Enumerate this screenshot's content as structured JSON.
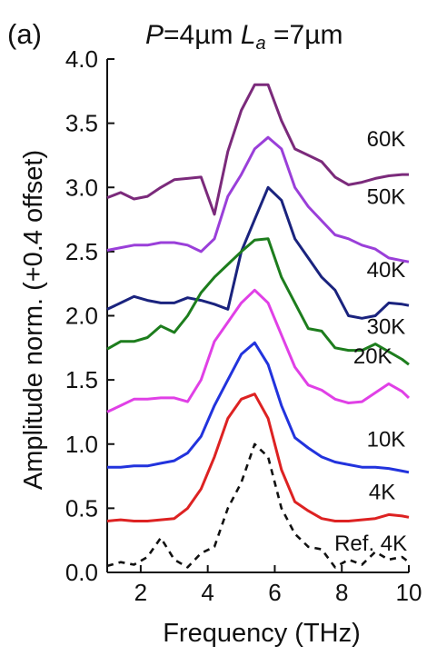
{
  "panel_label": "(a)",
  "chart_data": {
    "type": "line",
    "title_parts": {
      "p_sym": "P",
      "p_val": "=4µm ",
      "la_sym": "L",
      "la_sub": "a",
      "la_val": " =7µm"
    },
    "xlabel": "Frequency (THz)",
    "ylabel": "Amplitude  norm. (+0.4 offset)",
    "xlim": [
      1.0,
      10.0
    ],
    "ylim": [
      0.0,
      4.0
    ],
    "xticks": [
      2,
      4,
      6,
      8,
      10
    ],
    "xtick_labels": [
      "2",
      "4",
      "6",
      "8",
      "10"
    ],
    "yticks": [
      0.0,
      0.5,
      1.0,
      1.5,
      2.0,
      2.5,
      3.0,
      3.5,
      4.0
    ],
    "ytick_labels": [
      "0.0",
      "0.5",
      "1.0",
      "1.5",
      "2.0",
      "2.5",
      "3.0",
      "3.5",
      "4.0"
    ],
    "grid": false,
    "x": [
      1.0,
      1.4,
      1.8,
      2.2,
      2.6,
      3.0,
      3.4,
      3.8,
      4.2,
      4.6,
      5.0,
      5.4,
      5.8,
      6.2,
      6.6,
      7.0,
      7.4,
      7.8,
      8.2,
      8.6,
      9.0,
      9.4,
      9.8,
      10.0
    ],
    "series": [
      {
        "name": "60K",
        "color": "#7b2a7b",
        "dash": false,
        "values": [
          2.92,
          2.96,
          2.91,
          2.93,
          3.0,
          3.06,
          3.07,
          3.08,
          2.79,
          3.28,
          3.6,
          3.8,
          3.8,
          3.52,
          3.3,
          3.25,
          3.2,
          3.08,
          3.02,
          3.04,
          3.07,
          3.09,
          3.1,
          3.1
        ]
      },
      {
        "name": "50K",
        "color": "#9a3fd9",
        "dash": false,
        "values": [
          2.51,
          2.53,
          2.55,
          2.55,
          2.57,
          2.57,
          2.55,
          2.5,
          2.6,
          2.93,
          3.1,
          3.3,
          3.39,
          3.3,
          3.0,
          2.85,
          2.74,
          2.63,
          2.6,
          2.55,
          2.52,
          2.45,
          2.43,
          2.42
        ]
      },
      {
        "name": "40K",
        "color": "#1a237e",
        "dash": false,
        "values": [
          2.05,
          2.1,
          2.15,
          2.12,
          2.1,
          2.1,
          2.14,
          2.12,
          2.09,
          2.05,
          2.5,
          2.75,
          3.0,
          2.9,
          2.6,
          2.45,
          2.3,
          2.2,
          2.0,
          1.98,
          2.0,
          2.1,
          2.09,
          2.08
        ]
      },
      {
        "name": "30K",
        "color": "#1d7d1d",
        "dash": false,
        "values": [
          1.74,
          1.8,
          1.8,
          1.83,
          1.92,
          1.87,
          2.0,
          2.18,
          2.3,
          2.4,
          2.5,
          2.59,
          2.6,
          2.3,
          2.1,
          1.9,
          1.88,
          1.75,
          1.73,
          1.73,
          1.78,
          1.72,
          1.66,
          1.62
        ]
      },
      {
        "name": "20K",
        "color": "#e040e6",
        "dash": false,
        "values": [
          1.25,
          1.3,
          1.35,
          1.35,
          1.36,
          1.36,
          1.33,
          1.5,
          1.8,
          1.95,
          2.1,
          2.2,
          2.1,
          1.85,
          1.6,
          1.46,
          1.42,
          1.35,
          1.32,
          1.33,
          1.4,
          1.47,
          1.41,
          1.36
        ]
      },
      {
        "name": "10K",
        "color": "#2233dd",
        "dash": false,
        "values": [
          0.82,
          0.82,
          0.83,
          0.83,
          0.85,
          0.87,
          0.93,
          1.06,
          1.3,
          1.5,
          1.7,
          1.79,
          1.62,
          1.3,
          1.05,
          0.97,
          0.9,
          0.86,
          0.84,
          0.82,
          0.82,
          0.81,
          0.79,
          0.78
        ]
      },
      {
        "name": "4K",
        "color": "#dd2222",
        "dash": false,
        "values": [
          0.4,
          0.41,
          0.4,
          0.4,
          0.41,
          0.42,
          0.5,
          0.65,
          0.9,
          1.2,
          1.35,
          1.39,
          1.2,
          0.8,
          0.55,
          0.48,
          0.42,
          0.4,
          0.4,
          0.41,
          0.42,
          0.45,
          0.44,
          0.43
        ]
      },
      {
        "name": "Ref. 4K",
        "color": "#111111",
        "dash": true,
        "values": [
          0.05,
          0.08,
          0.06,
          0.12,
          0.27,
          0.1,
          0.04,
          0.15,
          0.2,
          0.5,
          0.7,
          1.0,
          0.9,
          0.5,
          0.3,
          0.2,
          0.18,
          0.04,
          0.1,
          0.06,
          0.16,
          0.1,
          0.12,
          0.08
        ]
      }
    ]
  }
}
